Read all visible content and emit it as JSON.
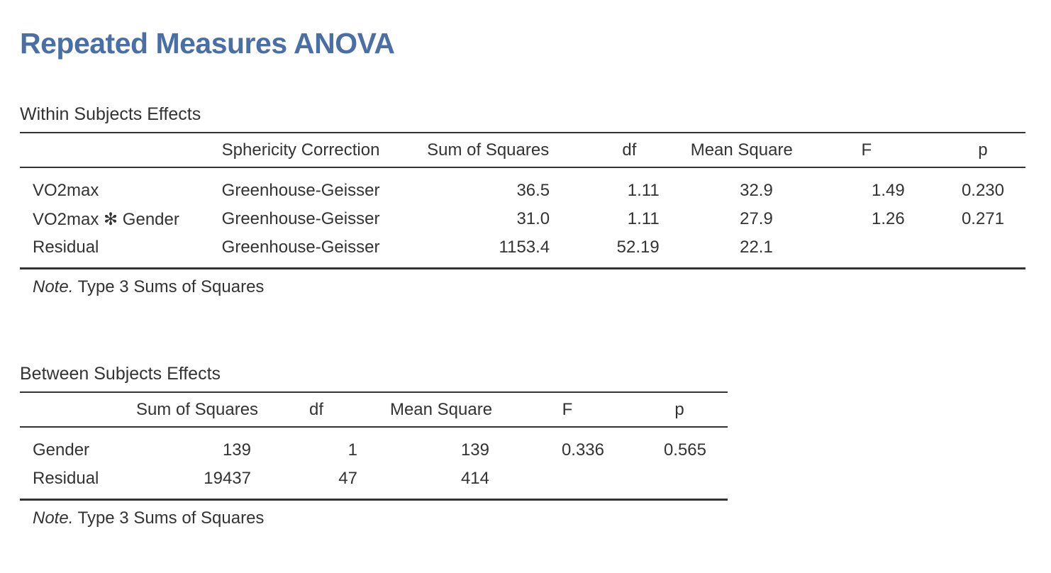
{
  "title": "Repeated Measures ANOVA",
  "within": {
    "caption": "Within Subjects Effects",
    "headers": [
      "",
      "Sphericity Correction",
      "Sum of Squares",
      "df",
      "Mean Square",
      "F",
      "p"
    ],
    "rows": [
      [
        "VO2max",
        "Greenhouse-Geisser",
        "36.5",
        "1.11",
        "32.9",
        "1.49",
        "0.230"
      ],
      [
        "VO2max ✻ Gender",
        "Greenhouse-Geisser",
        "31.0",
        "1.11",
        "27.9",
        "1.26",
        "0.271"
      ],
      [
        "Residual",
        "Greenhouse-Geisser",
        "1153.4",
        "52.19",
        "22.1",
        "",
        ""
      ]
    ],
    "note_label": "Note.",
    "note_text": " Type 3 Sums of Squares"
  },
  "between": {
    "caption": "Between Subjects Effects",
    "headers": [
      "",
      "Sum of Squares",
      "df",
      "Mean Square",
      "F",
      "p"
    ],
    "rows": [
      [
        "Gender",
        "139",
        "1",
        "139",
        "0.336",
        "0.565"
      ],
      [
        "Residual",
        "19437",
        "47",
        "414",
        "",
        ""
      ]
    ],
    "note_label": "Note.",
    "note_text": " Type 3 Sums of Squares"
  }
}
